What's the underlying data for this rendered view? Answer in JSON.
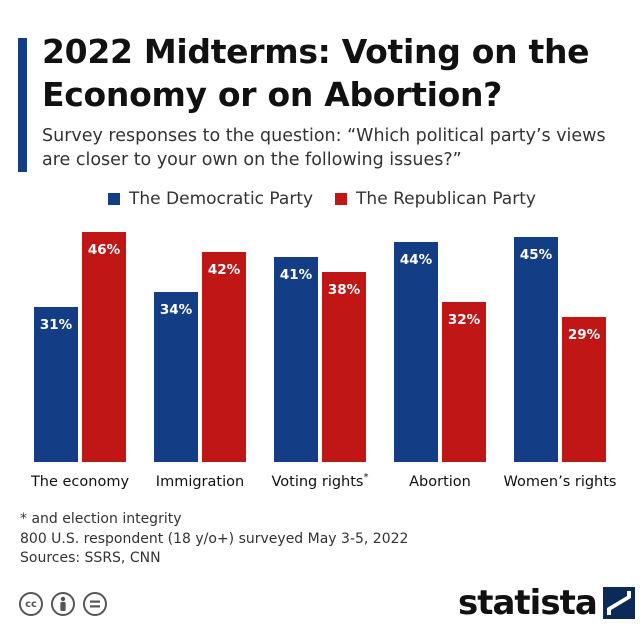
{
  "header": {
    "title": "2022 Midterms: Voting on the Economy or on Abortion?",
    "subtitle": "Survey responses to the question: “Which political party’s views are closer to your own on the following issues?”"
  },
  "chart_data": {
    "type": "bar",
    "title": "2022 Midterms: Voting on the Economy or on Abortion?",
    "subtitle": "Survey responses to the question: “Which political party’s views are closer to your own on the following issues?”",
    "categories": [
      "The economy",
      "Immigration",
      "Voting rights",
      "Abortion",
      "Women’s rights"
    ],
    "category_footnote_marks": [
      "",
      "",
      "*",
      "",
      ""
    ],
    "series": [
      {
        "name": "The Democratic Party",
        "values": [
          31,
          34,
          41,
          44,
          45
        ],
        "color": "#133e86"
      },
      {
        "name": "The Republican Party",
        "values": [
          46,
          42,
          38,
          32,
          29
        ],
        "color": "#c11616"
      }
    ],
    "value_suffix": "%",
    "ylim": [
      0,
      50
    ],
    "grid": false,
    "legend_position": "top-left",
    "xlabel": "",
    "ylabel": ""
  },
  "footer": {
    "footnote": "* and election integrity",
    "survey_note": "800 U.S. respondent (18 y/o+) surveyed May 3-5, 2022",
    "sources": "Sources: SSRS, CNN",
    "license_icons": [
      {
        "name": "cc-icon",
        "glyph": "cc"
      },
      {
        "name": "attribution-icon",
        "glyph": "person"
      },
      {
        "name": "no-derivatives-icon",
        "glyph": "="
      }
    ],
    "brand": "statista"
  }
}
